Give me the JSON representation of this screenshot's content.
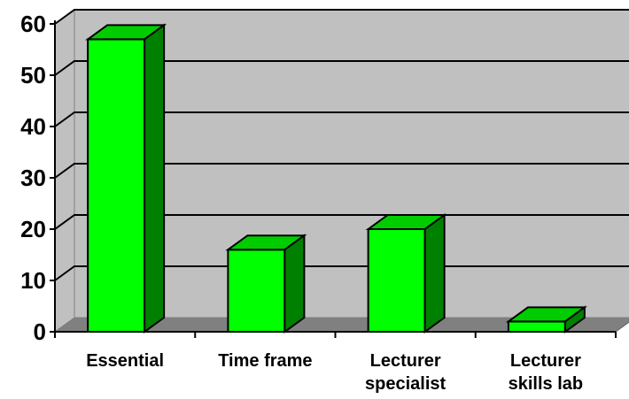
{
  "chart_data": {
    "type": "bar",
    "style": "3d-column",
    "categories": [
      [
        "Essential"
      ],
      [
        "Time frame"
      ],
      [
        "Lecturer",
        "specialist"
      ],
      [
        "Lecturer",
        "skills lab"
      ]
    ],
    "values": [
      57,
      16,
      20,
      2
    ],
    "ylim": [
      0,
      60
    ],
    "yticks": [
      0,
      10,
      20,
      30,
      40,
      50,
      60
    ],
    "grid": true,
    "legend": "none",
    "colors": {
      "bar_front": "#00ff00",
      "bar_top": "#00cc00",
      "bar_side": "#008000",
      "wall": "#c0c0c0",
      "floor": "#808080",
      "gridline": "#000000"
    }
  }
}
